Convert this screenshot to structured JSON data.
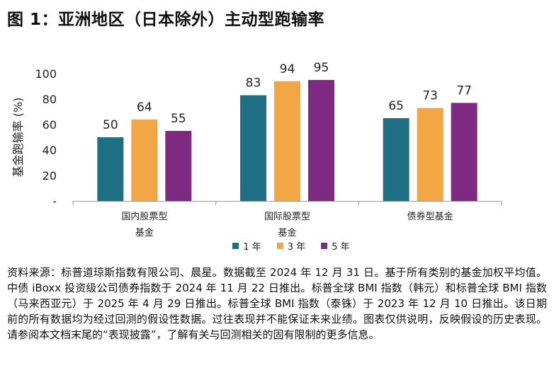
{
  "title": "图 1：亚洲地区（日本除外）主动型跑输率",
  "colors": {
    "s1": "#1f6f84",
    "s3": "#f2a744",
    "s5": "#7e2a82"
  },
  "chart_data": {
    "type": "bar",
    "ylabel": "基金跑输率 (%)",
    "ylim": [
      0,
      100
    ],
    "yticks": [
      "-",
      "20",
      "40",
      "60",
      "80",
      "100"
    ],
    "categories": [
      {
        "line1": "国内股票型",
        "line2": "基金"
      },
      {
        "line1": "国际股票型",
        "line2": "基金"
      },
      {
        "line1": "债券型基金",
        "line2": ""
      }
    ],
    "series": [
      {
        "name": "1 年",
        "values": [
          50,
          83,
          65
        ]
      },
      {
        "name": "3 年",
        "values": [
          64,
          94,
          73
        ]
      },
      {
        "name": "5 年",
        "values": [
          55,
          95,
          77
        ]
      }
    ],
    "legend_position": "bottom-center"
  },
  "note": "资料来源：标普道琼斯指数有限公司、晨星。数据截至 2024 年 12 月 31 日。基于所有类别的基金加权平均值。中债 iBoxx 投资级公司债券指数于 2024 年 11 月 22 日推出。标普全球 BMI 指数（韩元）和标普全球 BMI 指数（马来西亚元）于 2025 年 4 月 29 日推出。标普全球 BMI 指数（泰铢）于 2023 年 12 月 10 日推出。该日期前的所有数据均为经过回测的假设性数据。过往表现并不能保证未来业绩。图表仅供说明，反映假设的历史表现。请参阅本文档末尾的“表现披露”，了解有关与回测相关的固有限制的更多信息。"
}
